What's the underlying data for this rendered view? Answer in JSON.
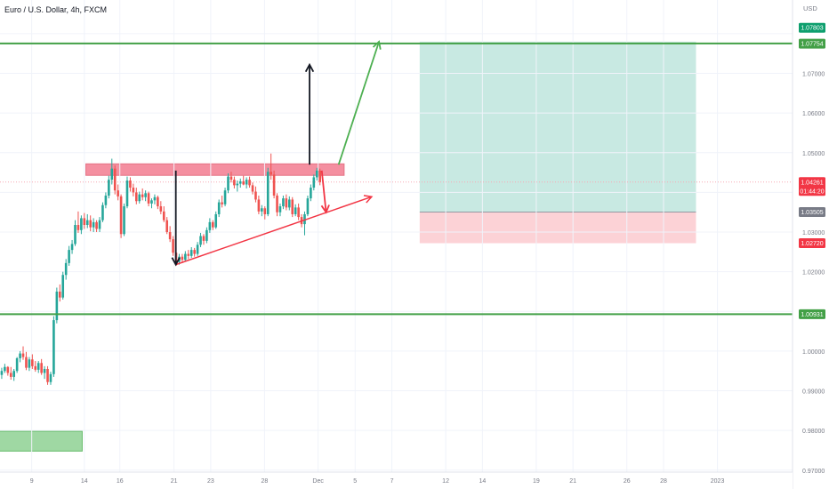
{
  "header": {
    "symbol_title": "Euro / U.S. Dollar, 4h, FXCM"
  },
  "axis": {
    "currency_label": "USD"
  },
  "colors": {
    "up": "#26a69a",
    "down": "#ef5350",
    "green_line": "#43a047",
    "resistance_fill": "#f48fa0",
    "target_zone": "#c8e9e2",
    "stop_zone": "#fcd2d6",
    "arrow_green": "#4caf50",
    "arrow_red": "#f23645",
    "arrow_black": "#131722"
  },
  "price_tags": {
    "upper_level": "1.07803",
    "target": "1.07754",
    "current_price": "1.04261",
    "countdown": "01:44:20",
    "entry": "1.03505",
    "stop": "1.02720",
    "lower_level": "1.00931"
  },
  "chart_data": {
    "type": "candlestick",
    "title": "Euro / U.S. Dollar, 4h, FXCM",
    "ylabel": "USD",
    "ylim": [
      0.9695,
      1.0885
    ],
    "y_ticks": [
      "1.07000",
      "1.06000",
      "1.05000",
      "1.03000",
      "1.02000",
      "1.00000",
      "0.99000",
      "0.98000",
      "0.97000"
    ],
    "x_ticks": [
      "9",
      "14",
      "16",
      "21",
      "23",
      "28",
      "Dec",
      "5",
      "7",
      "12",
      "14",
      "19",
      "21",
      "26",
      "28",
      "2023"
    ],
    "x_tick_index": [
      10.8,
      28.0,
      39.6,
      57.3,
      69.3,
      86.9,
      104.4,
      116.5,
      128.5,
      146.1,
      158.1,
      175.7,
      187.7,
      205.3,
      217.3,
      234.9
    ],
    "horizontal_levels": [
      1.07754,
      1.00931
    ],
    "resistance_zone": {
      "x": [
        28.5,
        112.9
      ],
      "y": [
        1.0443,
        1.0472
      ]
    },
    "target_zone": {
      "x": [
        137.6,
        227.9
      ],
      "y": [
        1.03505,
        1.078
      ]
    },
    "stop_zone": {
      "x": [
        137.6,
        227.9
      ],
      "y": [
        1.0272,
        1.03505
      ]
    },
    "bottom_box": {
      "x": [
        -2,
        27.3
      ],
      "y": [
        0.9748,
        0.9798
      ]
    },
    "trend_line": {
      "from": [
        57.9,
        1.0218
      ],
      "to": [
        121.9,
        1.0389
      ]
    },
    "arrows": [
      {
        "color": "black",
        "from": [
          57.9,
          1.0455
        ],
        "to": [
          57.9,
          1.0218
        ]
      },
      {
        "color": "black",
        "from": [
          101.6,
          1.047
        ],
        "to": [
          101.6,
          1.0722
        ]
      },
      {
        "color": "red",
        "from": [
          105.6,
          1.0455
        ],
        "to": [
          107.0,
          1.035
        ]
      },
      {
        "color": "green",
        "from": [
          111.1,
          1.047
        ],
        "to": [
          124.3,
          1.078
        ]
      }
    ],
    "candles": [
      [
        0.9925,
        0.9947,
        0.9918,
        0.994
      ],
      [
        0.994,
        0.9958,
        0.993,
        0.995
      ],
      [
        0.995,
        0.9968,
        0.9945,
        0.996
      ],
      [
        0.996,
        0.9962,
        0.9938,
        0.9945
      ],
      [
        0.9945,
        0.996,
        0.9928,
        0.9935
      ],
      [
        0.9935,
        0.9955,
        0.9925,
        0.995
      ],
      [
        0.995,
        0.9985,
        0.9945,
        0.9982
      ],
      [
        0.9982,
        1.0,
        0.9972,
        0.9994
      ],
      [
        0.9994,
        1.0012,
        0.9978,
        0.9985
      ],
      [
        0.9985,
        0.9998,
        0.9952,
        0.9958
      ],
      [
        0.9958,
        0.9985,
        0.995,
        0.9979
      ],
      [
        0.9979,
        0.9992,
        0.9955,
        0.9962
      ],
      [
        0.9962,
        0.9975,
        0.9948,
        0.9953
      ],
      [
        0.9953,
        0.9975,
        0.9945,
        0.997
      ],
      [
        0.997,
        0.998,
        0.994,
        0.9945
      ],
      [
        0.9945,
        0.9962,
        0.993,
        0.9955
      ],
      [
        0.9955,
        0.9962,
        0.9915,
        0.9922
      ],
      [
        0.9922,
        0.9948,
        0.9915,
        0.9942
      ],
      [
        0.9942,
        1.0088,
        0.9935,
        1.0078
      ],
      [
        1.0078,
        1.016,
        1.007,
        1.015
      ],
      [
        1.015,
        1.0168,
        1.0125,
        1.0135
      ],
      [
        1.0135,
        1.02,
        1.013,
        1.0192
      ],
      [
        1.0192,
        1.0232,
        1.018,
        1.0222
      ],
      [
        1.0222,
        1.0265,
        1.0215,
        1.0255
      ],
      [
        1.0255,
        1.028,
        1.0245,
        1.027
      ],
      [
        1.027,
        1.033,
        1.0265,
        1.0318
      ],
      [
        1.0318,
        1.0352,
        1.0298,
        1.0305
      ],
      [
        1.0305,
        1.0342,
        1.0295,
        1.0335
      ],
      [
        1.0335,
        1.0348,
        1.0308,
        1.0318
      ],
      [
        1.0318,
        1.0345,
        1.031,
        1.033
      ],
      [
        1.033,
        1.0342,
        1.0302,
        1.0312
      ],
      [
        1.0312,
        1.0335,
        1.03,
        1.0325
      ],
      [
        1.0325,
        1.033,
        1.03,
        1.0308
      ],
      [
        1.0308,
        1.0338,
        1.03,
        1.033
      ],
      [
        1.033,
        1.0375,
        1.0325,
        1.0368
      ],
      [
        1.0368,
        1.04,
        1.036,
        1.0392
      ],
      [
        1.0392,
        1.0442,
        1.0385,
        1.0432
      ],
      [
        1.0432,
        1.0485,
        1.042,
        1.046
      ],
      [
        1.046,
        1.0468,
        1.0395,
        1.0405
      ],
      [
        1.0405,
        1.042,
        1.038,
        1.039
      ],
      [
        1.039,
        1.0395,
        1.0285,
        1.0295
      ],
      [
        1.0295,
        1.0372,
        1.029,
        1.0365
      ],
      [
        1.0365,
        1.044,
        1.036,
        1.043
      ],
      [
        1.043,
        1.0438,
        1.0402,
        1.0412
      ],
      [
        1.0412,
        1.0422,
        1.039,
        1.04
      ],
      [
        1.04,
        1.0412,
        1.037,
        1.0378
      ],
      [
        1.0378,
        1.0402,
        1.0372,
        1.0395
      ],
      [
        1.0395,
        1.041,
        1.038,
        1.0388
      ],
      [
        1.0388,
        1.0405,
        1.0378,
        1.0398
      ],
      [
        1.0398,
        1.0402,
        1.0365,
        1.0372
      ],
      [
        1.0372,
        1.0385,
        1.036,
        1.038
      ],
      [
        1.038,
        1.0395,
        1.037,
        1.0388
      ],
      [
        1.0388,
        1.0392,
        1.0358,
        1.0365
      ],
      [
        1.0365,
        1.0378,
        1.0345,
        1.0352
      ],
      [
        1.0352,
        1.0365,
        1.0325,
        1.033
      ],
      [
        1.033,
        1.0338,
        1.0295,
        1.03
      ],
      [
        1.03,
        1.0315,
        1.0275,
        1.0282
      ],
      [
        1.0282,
        1.029,
        1.024,
        1.0248
      ],
      [
        1.0248,
        1.0262,
        1.0215,
        1.0225
      ],
      [
        1.0225,
        1.0245,
        1.0218,
        1.0238
      ],
      [
        1.0238,
        1.0245,
        1.0222,
        1.023
      ],
      [
        1.023,
        1.0252,
        1.0225,
        1.0245
      ],
      [
        1.0245,
        1.0255,
        1.0232,
        1.024
      ],
      [
        1.024,
        1.0262,
        1.0235,
        1.0255
      ],
      [
        1.0255,
        1.026,
        1.0238,
        1.0245
      ],
      [
        1.0245,
        1.0275,
        1.024,
        1.0268
      ],
      [
        1.0268,
        1.0298,
        1.0262,
        1.029
      ],
      [
        1.029,
        1.0295,
        1.0268,
        1.0278
      ],
      [
        1.0278,
        1.0312,
        1.0272,
        1.0305
      ],
      [
        1.0305,
        1.0335,
        1.0298,
        1.0325
      ],
      [
        1.0325,
        1.033,
        1.0305,
        1.0312
      ],
      [
        1.0312,
        1.0352,
        1.0308,
        1.0345
      ],
      [
        1.0345,
        1.0382,
        1.0338,
        1.0375
      ],
      [
        1.0375,
        1.0392,
        1.0362,
        1.037
      ],
      [
        1.037,
        1.0412,
        1.0365,
        1.0405
      ],
      [
        1.0405,
        1.0448,
        1.0398,
        1.044
      ],
      [
        1.044,
        1.0452,
        1.0425,
        1.0432
      ],
      [
        1.0432,
        1.044,
        1.041,
        1.0418
      ],
      [
        1.0418,
        1.043,
        1.0402,
        1.0422
      ],
      [
        1.0422,
        1.0435,
        1.0412,
        1.0428
      ],
      [
        1.0428,
        1.0442,
        1.0418,
        1.042
      ],
      [
        1.042,
        1.0438,
        1.041,
        1.0432
      ],
      [
        1.0432,
        1.044,
        1.0412,
        1.0418
      ],
      [
        1.0418,
        1.0425,
        1.0395,
        1.0402
      ],
      [
        1.0402,
        1.0415,
        1.0375,
        1.0382
      ],
      [
        1.0382,
        1.0392,
        1.0345,
        1.0352
      ],
      [
        1.0352,
        1.0368,
        1.034,
        1.036
      ],
      [
        1.036,
        1.0365,
        1.0332,
        1.0345
      ],
      [
        1.0345,
        1.0462,
        1.034,
        1.0452
      ],
      [
        1.0452,
        1.0498,
        1.0432,
        1.0445
      ],
      [
        1.0445,
        1.0455,
        1.0385,
        1.0392
      ],
      [
        1.0392,
        1.0398,
        1.034,
        1.035
      ],
      [
        1.035,
        1.0372,
        1.034,
        1.0365
      ],
      [
        1.0365,
        1.0392,
        1.0358,
        1.0385
      ],
      [
        1.0385,
        1.0395,
        1.0355,
        1.0362
      ],
      [
        1.0362,
        1.039,
        1.0355,
        1.0382
      ],
      [
        1.0382,
        1.0388,
        1.0338,
        1.0345
      ],
      [
        1.0345,
        1.037,
        1.034,
        1.0362
      ],
      [
        1.0362,
        1.0372,
        1.033,
        1.0338
      ],
      [
        1.0338,
        1.0345,
        1.0312,
        1.032
      ],
      [
        1.032,
        1.0352,
        1.0292,
        1.0345
      ],
      [
        1.0345,
        1.0392,
        1.034,
        1.0385
      ],
      [
        1.0385,
        1.042,
        1.0378,
        1.0412
      ],
      [
        1.0412,
        1.0445,
        1.0405,
        1.0438
      ],
      [
        1.0438,
        1.0462,
        1.043,
        1.0455
      ],
      [
        1.0455,
        1.046,
        1.0418,
        1.0426
      ]
    ]
  }
}
